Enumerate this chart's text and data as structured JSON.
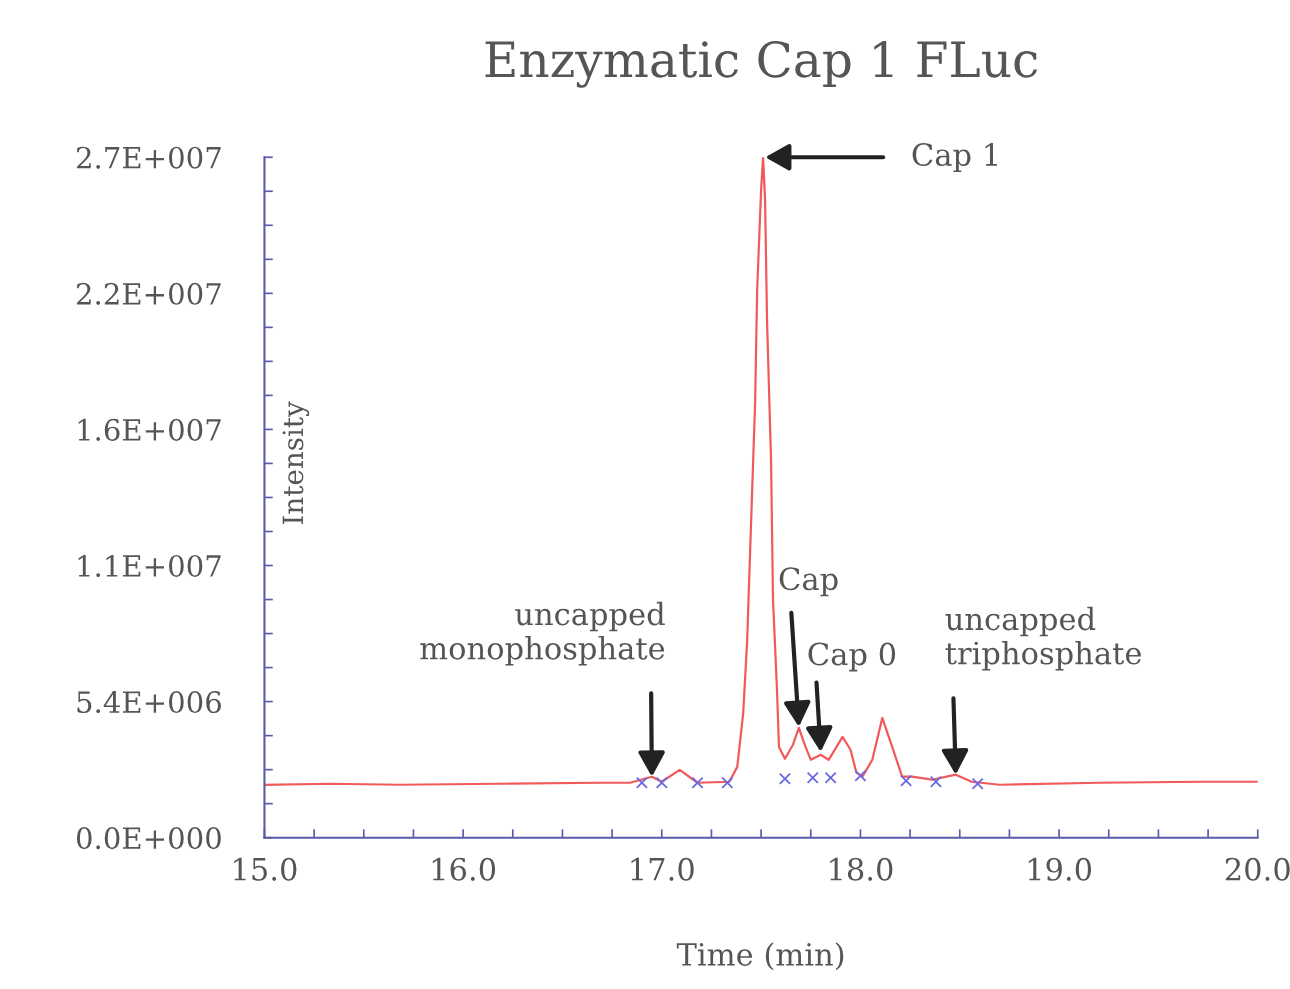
{
  "chart_data": {
    "type": "line",
    "title": "Enzymatic Cap 1 FLuc",
    "xlabel": "Time (min)",
    "ylabel": "Intensity",
    "series": [
      {
        "color": "#f05a5a",
        "marker": "none",
        "x": [
          15.0,
          15.33,
          15.68,
          16.18,
          16.69,
          16.84,
          16.95,
          17.0,
          17.09,
          17.18,
          17.34,
          17.38,
          17.41,
          17.43,
          17.45,
          17.47,
          17.48,
          17.5,
          17.51,
          17.52,
          17.53,
          17.55,
          17.56,
          17.58,
          17.59,
          17.62,
          17.66,
          17.69,
          17.72,
          17.75,
          17.8,
          17.84,
          17.91,
          17.95,
          17.98,
          18.01,
          18.06,
          18.11,
          18.16,
          18.21,
          18.26,
          18.36,
          18.48,
          18.56,
          18.7,
          19.2,
          19.71,
          20.0
        ],
        "values": [
          2100000,
          2140000,
          2100000,
          2140000,
          2180000,
          2180000,
          2420000,
          2220000,
          2690000,
          2180000,
          2220000,
          2810000,
          4950000,
          7840000,
          12600000,
          17300000,
          21700000,
          25700000,
          27000000,
          25300000,
          20500000,
          15000000,
          9430000,
          5860000,
          3600000,
          3130000,
          3680000,
          4360000,
          3680000,
          3090000,
          3290000,
          3090000,
          4000000,
          3490000,
          2580000,
          2420000,
          3090000,
          4750000,
          3600000,
          2420000,
          2420000,
          2300000,
          2500000,
          2220000,
          2100000,
          2180000,
          2220000,
          2220000
        ]
      },
      {
        "type": "scatter",
        "color": "#6a6ae0",
        "marker": "cross",
        "x": [
          16.9,
          17.0,
          17.18,
          17.33,
          17.62,
          17.76,
          17.85,
          18.0,
          18.23,
          18.38,
          18.59
        ],
        "values": [
          2180000,
          2180000,
          2180000,
          2180000,
          2340000,
          2380000,
          2380000,
          2460000,
          2260000,
          2220000,
          2140000
        ]
      }
    ],
    "xlim": [
      15.0,
      20.0
    ],
    "xticks": [
      {
        "value": 15.0,
        "label": "15.0"
      },
      {
        "value": 15.25,
        "label": null
      },
      {
        "value": 15.5,
        "label": null
      },
      {
        "value": 15.75,
        "label": null
      },
      {
        "value": 16.0,
        "label": "16.0"
      },
      {
        "value": 16.25,
        "label": null
      },
      {
        "value": 16.5,
        "label": null
      },
      {
        "value": 16.75,
        "label": null
      },
      {
        "value": 17.0,
        "label": "17.0"
      },
      {
        "value": 17.25,
        "label": null
      },
      {
        "value": 17.5,
        "label": null
      },
      {
        "value": 17.75,
        "label": null
      },
      {
        "value": 18.0,
        "label": "18.0"
      },
      {
        "value": 18.25,
        "label": null
      },
      {
        "value": 18.5,
        "label": null
      },
      {
        "value": 18.75,
        "label": null
      },
      {
        "value": 19.0,
        "label": "19.0"
      },
      {
        "value": 19.25,
        "label": null
      },
      {
        "value": 19.5,
        "label": null
      },
      {
        "value": 19.75,
        "label": null
      },
      {
        "value": 20.0,
        "label": "20.0"
      }
    ],
    "ylim": [
      0,
      27000000
    ],
    "yticks": [
      {
        "value": 0,
        "label": "0.0E+000"
      },
      {
        "value": 1350000,
        "label": null
      },
      {
        "value": 2700000,
        "label": null
      },
      {
        "value": 4050000,
        "label": null
      },
      {
        "value": 5400000,
        "label": "5.4E+006"
      },
      {
        "value": 6750000,
        "label": null
      },
      {
        "value": 8100000,
        "label": null
      },
      {
        "value": 9450000,
        "label": null
      },
      {
        "value": 10800000,
        "label": "1.1E+007"
      },
      {
        "value": 12150000,
        "label": null
      },
      {
        "value": 13500000,
        "label": null
      },
      {
        "value": 14850000,
        "label": null
      },
      {
        "value": 16200000,
        "label": "1.6E+007"
      },
      {
        "value": 17550000,
        "label": null
      },
      {
        "value": 18900000,
        "label": null
      },
      {
        "value": 20250000,
        "label": null
      },
      {
        "value": 21600000,
        "label": "2.2E+007"
      },
      {
        "value": 22950000,
        "label": null
      },
      {
        "value": 24300000,
        "label": null
      },
      {
        "value": 25650000,
        "label": null
      },
      {
        "value": 27000000,
        "label": "2.7E+007"
      }
    ],
    "annotations": [
      {
        "text": "Cap 1",
        "x": 17.52,
        "y": 27000000
      },
      {
        "text": "Cap",
        "x": 17.69,
        "y": 4400000
      },
      {
        "text": "Cap 0",
        "x": 17.8,
        "y": 3400000
      },
      {
        "text": "uncapped\nmonophosphate",
        "x": 16.95,
        "y": 2420000
      },
      {
        "text": "uncapped\ntriphosphate",
        "x": 18.48,
        "y": 2500000
      }
    ]
  }
}
